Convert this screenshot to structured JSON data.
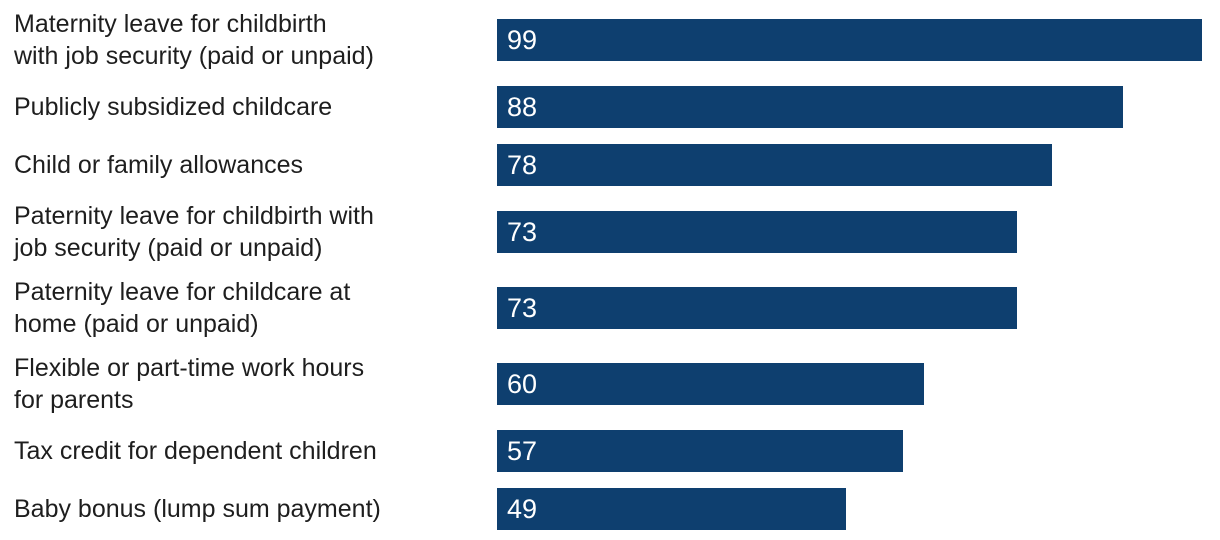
{
  "chart_data": {
    "type": "bar",
    "orientation": "horizontal",
    "title": "",
    "xlabel": "",
    "ylabel": "",
    "xlim": [
      0,
      101
    ],
    "grid": false,
    "legend": false,
    "bar_color": "#0e3f6f",
    "value_label_color": "#ffffff",
    "category_label_color": "#1e1e1e",
    "value_labels_position": "inside-start",
    "categories": [
      "Maternity leave for childbirth\nwith job security (paid or unpaid)",
      "Publicly subsidized childcare",
      "Child or family allowances",
      "Paternity leave for childbirth with\njob security (paid or unpaid)",
      "Paternity leave for childcare at\nhome (paid or unpaid)",
      "Flexible or part-time work hours\nfor parents",
      "Tax credit for dependent children",
      "Baby bonus (lump sum payment)"
    ],
    "values": [
      99,
      88,
      78,
      73,
      73,
      60,
      57,
      49
    ]
  }
}
